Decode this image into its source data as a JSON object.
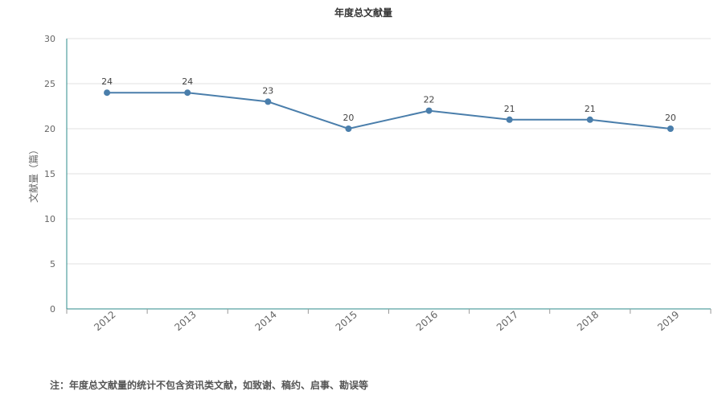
{
  "chart_data": {
    "type": "line",
    "title": "年度总文献量",
    "ylabel": "文献量（篇）",
    "xlabel": "",
    "categories": [
      "2012",
      "2013",
      "2014",
      "2015",
      "2016",
      "2017",
      "2018",
      "2019"
    ],
    "series": [
      {
        "values": [
          24,
          24,
          23,
          20,
          22,
          21,
          21,
          20
        ]
      }
    ],
    "ylim": [
      0,
      30
    ],
    "yticks": [
      0,
      5,
      10,
      15,
      20,
      25,
      30
    ],
    "grid": true,
    "data_labels": true,
    "line_color": "#4a7eab",
    "grid_color": "#e0e0e0",
    "axis_color": "#2e8b8b"
  },
  "note": "注：年度总文献量的统计不包含资讯类文献，如致谢、稿约、启事、勘误等"
}
